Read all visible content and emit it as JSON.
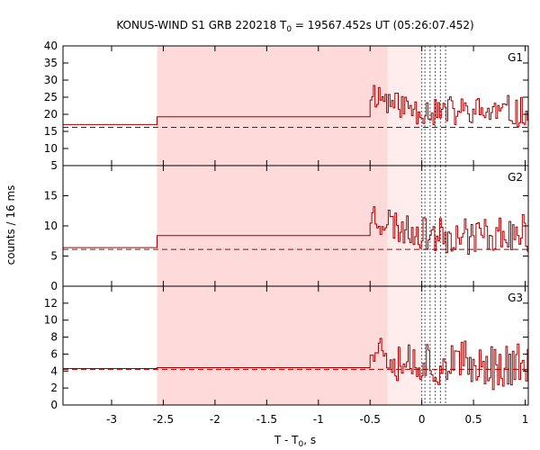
{
  "chart_data": {
    "type": "line",
    "title_prefix": "KONUS-WIND S1 GRB 220218 T",
    "title_sub": "0",
    "title_suffix": " = 19567.452s UT (05:26:07.452)",
    "xlabel_prefix": "T - T",
    "xlabel_sub": "0",
    "xlabel_suffix": ", s",
    "ylabel": "counts / 16 ms",
    "xlim": [
      -3.47,
      1.03
    ],
    "x_ticks": [
      -3,
      -2.5,
      -2,
      -1.5,
      -1,
      -0.5,
      0,
      0.5,
      1
    ],
    "x_tick_labels": [
      "-3",
      "-2.5",
      "-2",
      "-1.5",
      "-1",
      "-0.5",
      "0",
      "0.5",
      "1"
    ],
    "shaded_regions": [
      {
        "start": -2.56,
        "end": -0.33,
        "style": "dark"
      },
      {
        "start": -0.33,
        "end": 0.0,
        "style": "light"
      }
    ],
    "vertical_lines": [
      0.03,
      0.08,
      0.13,
      0.18,
      0.23
    ],
    "panels": [
      {
        "name": "G1",
        "ylim": [
          5,
          40
        ],
        "y_ticks": [
          5,
          10,
          15,
          20,
          25,
          30,
          35,
          40
        ],
        "y_tick_labels": [
          "5",
          "10",
          "15",
          "20",
          "25",
          "30",
          "35",
          "40"
        ],
        "background": 16.2,
        "steps": [
          [
            -3.47,
            17.0
          ],
          [
            -2.56,
            19.3
          ],
          [
            -0.5,
            19.3
          ]
        ],
        "seed": 11,
        "peak": 30,
        "peak_t": -0.45,
        "tail_level": 20.5,
        "noise": 5.5
      },
      {
        "name": "G2",
        "ylim": [
          0,
          20
        ],
        "y_ticks": [
          0,
          5,
          10,
          15
        ],
        "y_tick_labels": [
          "0",
          "5",
          "10",
          "15"
        ],
        "background": 6.1,
        "steps": [
          [
            -3.47,
            6.4
          ],
          [
            -2.56,
            8.4
          ],
          [
            -0.5,
            8.4
          ]
        ],
        "seed": 23,
        "peak": 14,
        "peak_t": -0.45,
        "tail_level": 8.5,
        "noise": 3.5
      },
      {
        "name": "G3",
        "ylim": [
          0,
          14
        ],
        "y_ticks": [
          0,
          2,
          4,
          6,
          8,
          10,
          12
        ],
        "y_tick_labels": [
          "0",
          "2",
          "4",
          "6",
          "8",
          "10",
          "12"
        ],
        "background": 4.2,
        "steps": [
          [
            -3.47,
            4.3
          ],
          [
            -2.56,
            4.4
          ],
          [
            -0.5,
            4.4
          ]
        ],
        "seed": 37,
        "peak": 9,
        "peak_t": -0.45,
        "tail_level": 4.6,
        "noise": 3.2
      }
    ],
    "colors": {
      "line": "#a00000",
      "shade_dark": "#ffdada",
      "shade_light": "#ffeded",
      "vline": "#555555"
    }
  }
}
